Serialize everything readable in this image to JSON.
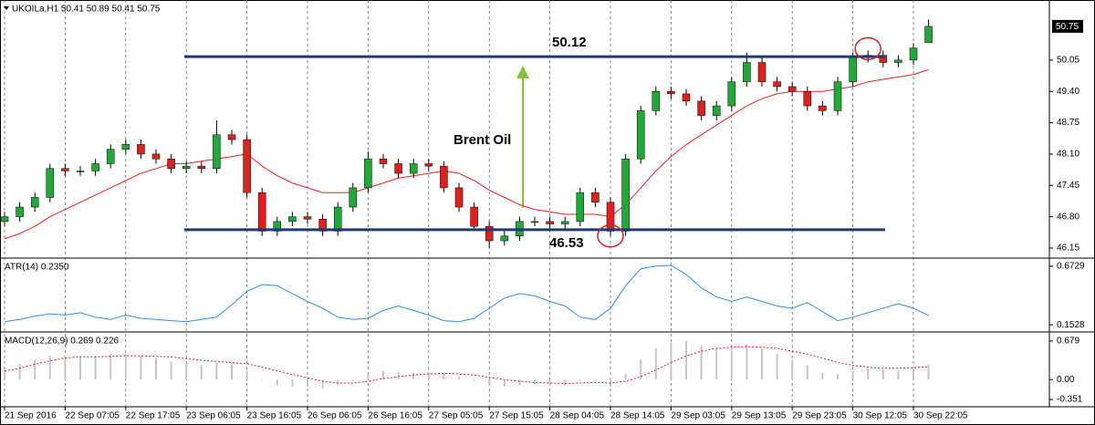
{
  "chart_data": [
    {
      "type": "candlestick",
      "title": "UKOILa,H1  50.41 50.89 50.41 50.75",
      "annotation": "Brent Oil",
      "levels": [
        50.12,
        46.53
      ],
      "categories": [
        "21 Sep 2016",
        null,
        null,
        null,
        "22 Sep 07:05",
        null,
        null,
        null,
        "22 Sep 17:05",
        null,
        null,
        null,
        "23 Sep 06:05",
        null,
        null,
        null,
        "23 Sep 16:05",
        null,
        null,
        null,
        "26 Sep 06:05",
        null,
        null,
        null,
        "26 Sep 16:05",
        null,
        null,
        null,
        "27 Sep 05:05",
        null,
        null,
        null,
        "27 Sep 15:05",
        null,
        null,
        null,
        "28 Sep 04:05",
        null,
        null,
        null,
        "28 Sep 14:05",
        null,
        null,
        null,
        "29 Sep 03:05",
        null,
        null,
        null,
        "29 Sep 13:05",
        null,
        null,
        null,
        "29 Sep 23:05",
        null,
        null,
        null,
        "30 Sep 12:05",
        null,
        null,
        null,
        "30 Sep 22:05",
        null
      ],
      "open": [
        46.7,
        46.8,
        47.0,
        47.2,
        47.8,
        47.75,
        47.75,
        47.9,
        48.2,
        48.3,
        48.1,
        48.0,
        47.8,
        47.85,
        47.8,
        48.5,
        48.4,
        47.3,
        46.5,
        46.7,
        46.8,
        46.75,
        46.5,
        47.0,
        47.4,
        48.0,
        47.9,
        47.7,
        47.9,
        47.85,
        47.4,
        47.0,
        46.6,
        46.3,
        46.4,
        46.7,
        46.7,
        46.65,
        46.7,
        47.3,
        47.1,
        46.5,
        48.0,
        49.0,
        49.4,
        49.35,
        49.2,
        48.9,
        49.1,
        49.6,
        50.0,
        49.6,
        49.5,
        49.4,
        49.1,
        49.0,
        49.6,
        50.1,
        50.15,
        50.0,
        50.05,
        50.41
      ],
      "high": [
        46.9,
        47.1,
        47.3,
        47.9,
        47.9,
        47.85,
        48.0,
        48.3,
        48.4,
        48.4,
        48.2,
        48.1,
        47.95,
        47.95,
        48.8,
        48.6,
        48.5,
        47.4,
        46.8,
        46.9,
        46.9,
        46.85,
        47.1,
        47.5,
        48.15,
        48.1,
        48.0,
        48.0,
        48.0,
        47.95,
        47.5,
        47.1,
        46.7,
        46.5,
        46.8,
        46.8,
        46.8,
        46.8,
        47.4,
        47.4,
        47.2,
        48.1,
        49.1,
        49.5,
        49.5,
        49.45,
        49.3,
        49.2,
        49.7,
        50.2,
        50.1,
        49.7,
        49.6,
        49.5,
        49.2,
        49.7,
        50.2,
        50.25,
        50.25,
        50.15,
        50.4,
        50.89
      ],
      "low": [
        46.6,
        46.7,
        46.9,
        47.1,
        47.65,
        47.65,
        47.65,
        47.8,
        48.1,
        48.0,
        47.9,
        47.7,
        47.7,
        47.7,
        47.7,
        48.3,
        47.2,
        46.4,
        46.4,
        46.6,
        46.65,
        46.4,
        46.4,
        46.9,
        47.3,
        47.8,
        47.6,
        47.6,
        47.75,
        47.3,
        46.9,
        46.5,
        46.15,
        46.2,
        46.3,
        46.6,
        46.55,
        46.55,
        46.6,
        47.0,
        46.4,
        46.4,
        47.9,
        48.9,
        49.25,
        49.1,
        48.8,
        48.8,
        49.0,
        49.5,
        49.5,
        49.4,
        49.3,
        49.0,
        48.9,
        48.9,
        49.5,
        50.0,
        49.9,
        49.9,
        49.95,
        50.41
      ],
      "close": [
        46.8,
        47.0,
        47.2,
        47.8,
        47.75,
        47.75,
        47.9,
        48.2,
        48.3,
        48.1,
        48.0,
        47.8,
        47.85,
        47.8,
        48.5,
        48.4,
        47.3,
        46.5,
        46.7,
        46.8,
        46.75,
        46.5,
        47.0,
        47.4,
        48.0,
        47.9,
        47.7,
        47.9,
        47.85,
        47.4,
        47.0,
        46.6,
        46.3,
        46.4,
        46.7,
        46.7,
        46.65,
        46.7,
        47.3,
        47.1,
        46.5,
        48.0,
        49.0,
        49.4,
        49.35,
        49.2,
        48.9,
        49.1,
        49.6,
        50.0,
        49.6,
        49.5,
        49.4,
        49.1,
        49.0,
        49.6,
        50.1,
        50.15,
        50.0,
        50.05,
        50.3,
        50.75
      ],
      "ma": [
        46.34,
        46.45,
        46.6,
        46.8,
        46.95,
        47.1,
        47.25,
        47.4,
        47.55,
        47.7,
        47.8,
        47.9,
        47.9,
        47.95,
        48.0,
        48.05,
        48.1,
        47.85,
        47.65,
        47.5,
        47.4,
        47.3,
        47.3,
        47.3,
        47.4,
        47.5,
        47.6,
        47.65,
        47.7,
        47.75,
        47.7,
        47.55,
        47.35,
        47.2,
        47.05,
        46.95,
        46.9,
        46.85,
        46.85,
        46.85,
        46.8,
        47.05,
        47.4,
        47.75,
        48.05,
        48.3,
        48.5,
        48.7,
        48.9,
        49.1,
        49.25,
        49.35,
        49.4,
        49.4,
        49.4,
        49.45,
        49.5,
        49.6,
        49.65,
        49.7,
        49.75,
        49.85
      ],
      "up_color": "#22a838",
      "down_color": "#e0201c",
      "ma_color": "#e8231f",
      "level_color": "#1f3a6e",
      "grid_color": "#555555",
      "ylim": [
        45.96,
        51.24
      ],
      "yticks": [
        46.15,
        {
          "value": 46.8,
          "label": "46.80"
        },
        47.45,
        {
          "value": 48.1,
          "label": "48.10"
        },
        48.75,
        {
          "value": 49.4,
          "label": "49.40"
        },
        50.05
      ],
      "grid": true
    },
    {
      "type": "line",
      "title": "ATR(14) 0.2350",
      "values": [
        0.18,
        0.2,
        0.23,
        0.25,
        0.24,
        0.26,
        0.22,
        0.2,
        0.24,
        0.21,
        0.2,
        0.19,
        0.18,
        0.2,
        0.22,
        0.33,
        0.45,
        0.51,
        0.5,
        0.43,
        0.36,
        0.3,
        0.22,
        0.2,
        0.21,
        0.28,
        0.32,
        0.28,
        0.24,
        0.19,
        0.18,
        0.21,
        0.3,
        0.39,
        0.43,
        0.41,
        0.36,
        0.32,
        0.22,
        0.2,
        0.3,
        0.5,
        0.65,
        0.6729,
        0.68,
        0.6,
        0.48,
        0.4,
        0.36,
        0.4,
        0.36,
        0.32,
        0.3,
        0.35,
        0.27,
        0.19,
        0.22,
        0.26,
        0.3,
        0.34,
        0.3,
        0.235
      ],
      "color": "#2f8fe8",
      "ylim": [
        0.1055,
        0.7202
      ],
      "yticks": [
        0.1528,
        0.6729
      ]
    },
    {
      "type": "bar",
      "title": "MACD(12,26,9) 0.269 0.226",
      "values": [
        0.2,
        0.28,
        0.35,
        0.42,
        0.42,
        0.4,
        0.42,
        0.45,
        0.45,
        0.42,
        0.38,
        0.32,
        0.28,
        0.25,
        0.3,
        0.3,
        0.15,
        0.0,
        -0.1,
        -0.12,
        -0.12,
        -0.15,
        -0.1,
        -0.02,
        0.1,
        0.15,
        0.14,
        0.12,
        0.13,
        0.1,
        0.05,
        -0.02,
        -0.1,
        -0.12,
        -0.1,
        -0.08,
        -0.1,
        -0.1,
        -0.02,
        -0.02,
        -0.12,
        0.1,
        0.35,
        0.55,
        0.65,
        0.68,
        0.6,
        0.55,
        0.55,
        0.62,
        0.55,
        0.45,
        0.35,
        0.25,
        0.12,
        0.1,
        0.15,
        0.2,
        0.18,
        0.15,
        0.18,
        0.269
      ],
      "signal": [
        0.15,
        0.2,
        0.27,
        0.33,
        0.38,
        0.4,
        0.4,
        0.41,
        0.42,
        0.42,
        0.41,
        0.4,
        0.37,
        0.34,
        0.32,
        0.3,
        0.28,
        0.22,
        0.15,
        0.09,
        0.03,
        -0.03,
        -0.06,
        -0.06,
        -0.03,
        0.02,
        0.05,
        0.08,
        0.1,
        0.11,
        0.1,
        0.08,
        0.04,
        0.0,
        -0.03,
        -0.05,
        -0.06,
        -0.07,
        -0.06,
        -0.05,
        -0.06,
        -0.03,
        0.05,
        0.17,
        0.3,
        0.42,
        0.5,
        0.55,
        0.57,
        0.58,
        0.57,
        0.55,
        0.5,
        0.45,
        0.38,
        0.3,
        0.25,
        0.22,
        0.2,
        0.2,
        0.21,
        0.226
      ],
      "color": "#c4c4c4",
      "signal_color": "#e0201c",
      "ylim": [
        -0.462,
        0.79
      ],
      "yticks": [
        -0.351,
        {
          "value": 0,
          "label": "0.00"
        },
        0.679
      ]
    }
  ]
}
